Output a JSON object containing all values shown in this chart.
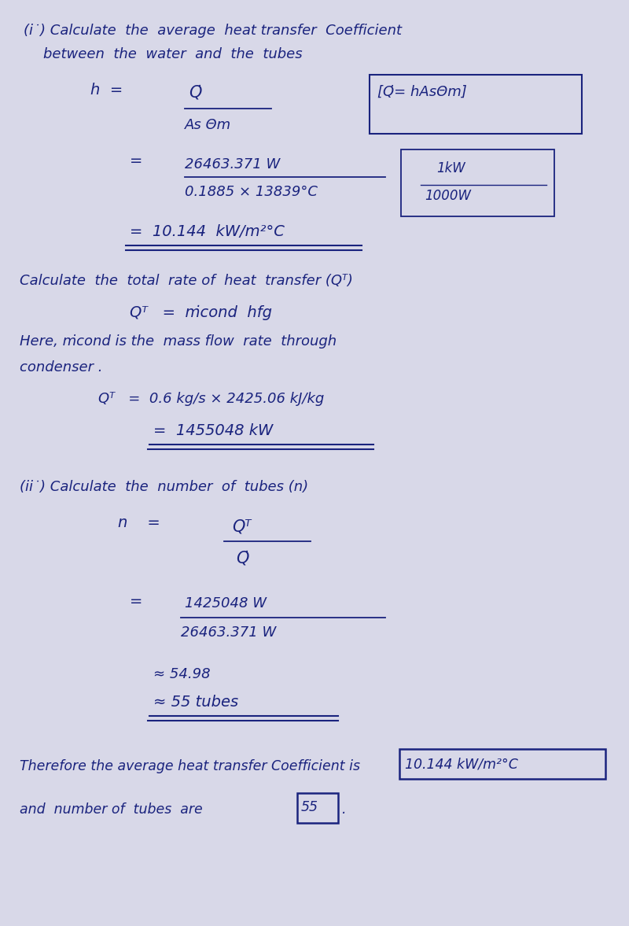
{
  "bg_color": "#d8d8e8",
  "text_color": "#1a237e",
  "figsize": [
    8.0,
    11.77
  ],
  "dpi": 100
}
